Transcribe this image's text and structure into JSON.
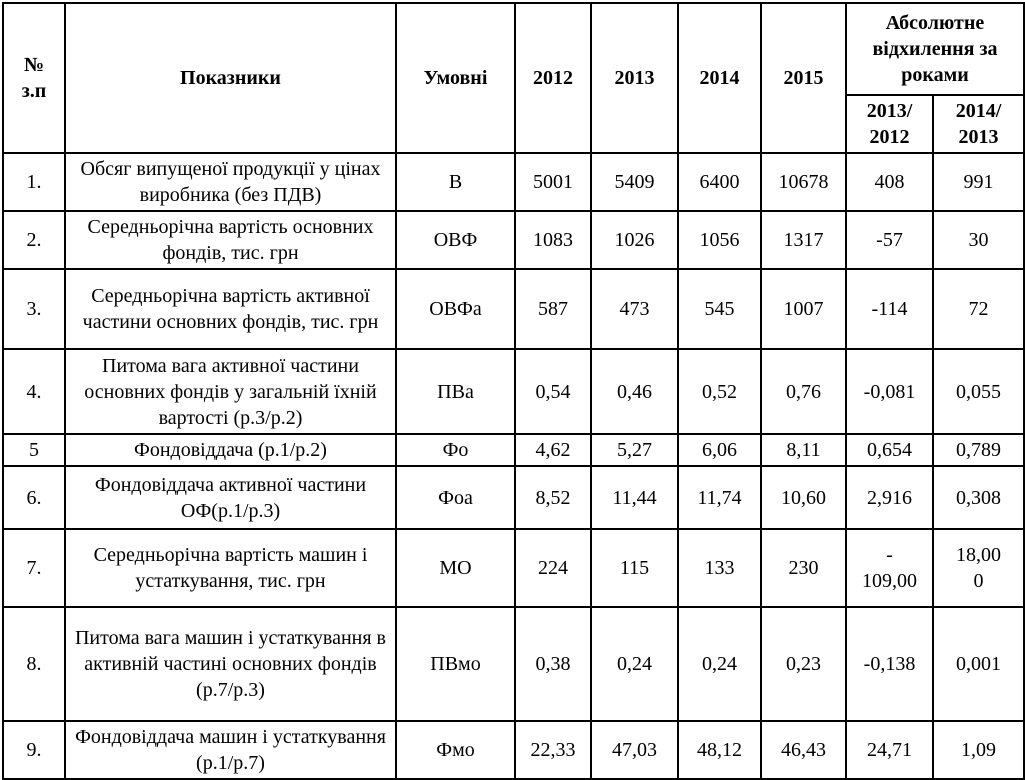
{
  "table": {
    "header": {
      "col_num": "№\nз.п",
      "col_indicator": "Показники",
      "col_symbol": "Умовні",
      "years": [
        "2012",
        "2013",
        "2014",
        "2015"
      ],
      "deviation_group": "Абсолютне відхилення за роками",
      "deviation_cols": [
        "2013/\n2012",
        "2014/\n2013"
      ]
    },
    "rows": [
      {
        "num": "1.",
        "indicator": "Обсяг випущеної продукції у цінах виробника (без ПДВ)",
        "symbol": "В",
        "y2012": "5001",
        "y2013": "5409",
        "y2014": "6400",
        "y2015": "10678",
        "dev1": "408",
        "dev2": "991"
      },
      {
        "num": "2.",
        "indicator": "Середньорічна вартість основних фондів, тис. грн",
        "symbol": "ОВФ",
        "y2012": "1083",
        "y2013": "1026",
        "y2014": "1056",
        "y2015": "1317",
        "dev1": "-57",
        "dev2": "30"
      },
      {
        "num": "3.",
        "indicator": "Середньорічна вартість активної частини основних фондів, тис. грн",
        "symbol": "ОВФа",
        "y2012": "587",
        "y2013": "473",
        "y2014": "545",
        "y2015": "1007",
        "dev1": "-114",
        "dev2": "72"
      },
      {
        "num": "4.",
        "indicator": "Питома вага активної частини основних фондів у загальній їхній вартості (р.3/р.2)",
        "symbol": "ПВа",
        "y2012": "0,54",
        "y2013": "0,46",
        "y2014": "0,52",
        "y2015": "0,76",
        "dev1": "-0,081",
        "dev2": "0,055"
      },
      {
        "num": "5",
        "indicator": "Фондовіддача (р.1/р.2)",
        "symbol": "Фо",
        "y2012": "4,62",
        "y2013": "5,27",
        "y2014": "6,06",
        "y2015": "8,11",
        "dev1": "0,654",
        "dev2": "0,789"
      },
      {
        "num": "6.",
        "indicator": "Фондовіддача активної частини ОФ(р.1/р.3)",
        "symbol": "Фоа",
        "y2012": "8,52",
        "y2013": "11,44",
        "y2014": "11,74",
        "y2015": "10,60",
        "dev1": "2,916",
        "dev2": "0,308"
      },
      {
        "num": "7.",
        "indicator": "Середньорічна вартість машин і устаткування, тис. грн",
        "symbol": "МО",
        "y2012": "224",
        "y2013": "115",
        "y2014": "133",
        "y2015": "230",
        "dev1": "-\n109,00",
        "dev2": "18,00\n0"
      },
      {
        "num": "8.",
        "indicator": "Питома вага машин і устаткування в активній частині основних фондів (р.7/р.3)",
        "symbol": "ПВмо",
        "y2012": "0,38",
        "y2013": "0,24",
        "y2014": "0,24",
        "y2015": "0,23",
        "dev1": "-0,138",
        "dev2": "0,001"
      },
      {
        "num": "9.",
        "indicator": "Фондовіддача машин і устаткування (р.1/р.7)",
        "symbol": "Фмо",
        "y2012": "22,33",
        "y2013": "47,03",
        "y2014": "48,12",
        "y2015": "46,43",
        "dev1": "24,71",
        "dev2": "1,09"
      }
    ]
  },
  "colors": {
    "border": "#000000",
    "background": "#ffffff",
    "text": "#000000"
  }
}
